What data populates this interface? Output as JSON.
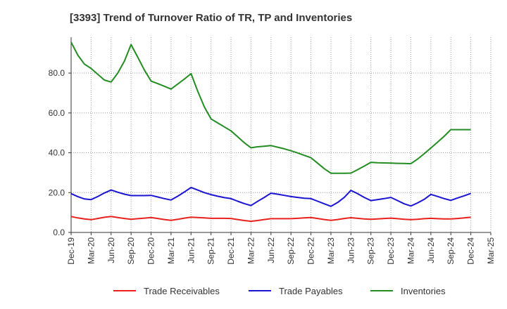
{
  "chart_data": {
    "type": "line",
    "title": "[3393]  Trend of Turnover Ratio of TR, TP and Inventories",
    "xlabel": "",
    "ylabel": "",
    "ylim": [
      0,
      98
    ],
    "yticks": [
      "0.0",
      "20.0",
      "40.0",
      "60.0",
      "80.0"
    ],
    "ytick_values": [
      0,
      20,
      40,
      60,
      80
    ],
    "xtick_labels": [
      "Dec-19",
      "Mar-20",
      "Jun-20",
      "Sep-20",
      "Dec-20",
      "Mar-21",
      "Jun-21",
      "Sep-21",
      "Dec-21",
      "Mar-22",
      "Jun-22",
      "Sep-22",
      "Dec-22",
      "Mar-23",
      "Jun-23",
      "Sep-23",
      "Dec-23",
      "Mar-24",
      "Jun-24",
      "Sep-24",
      "Dec-24",
      "Mar-25"
    ],
    "x": [
      "Dec-19",
      "Jan-20",
      "Feb-20",
      "Mar-20",
      "Apr-20",
      "May-20",
      "Jun-20",
      "Jul-20",
      "Aug-20",
      "Sep-20",
      "Oct-20",
      "Nov-20",
      "Dec-20",
      "Jan-21",
      "Feb-21",
      "Mar-21",
      "Apr-21",
      "May-21",
      "Jun-21",
      "Jul-21",
      "Aug-21",
      "Sep-21",
      "Oct-21",
      "Nov-21",
      "Dec-21",
      "Jan-22",
      "Feb-22",
      "Mar-22",
      "Apr-22",
      "May-22",
      "Jun-22",
      "Jul-22",
      "Aug-22",
      "Sep-22",
      "Oct-22",
      "Nov-22",
      "Dec-22",
      "Jan-23",
      "Feb-23",
      "Mar-23",
      "Apr-23",
      "May-23",
      "Jun-23",
      "Jul-23",
      "Aug-23",
      "Sep-23",
      "Oct-23",
      "Nov-23",
      "Dec-23",
      "Jan-24",
      "Feb-24",
      "Mar-24",
      "Apr-24",
      "May-24",
      "Jun-24",
      "Jul-24",
      "Aug-24",
      "Sep-24",
      "Oct-24",
      "Nov-24",
      "Dec-24"
    ],
    "series": [
      {
        "name": "Trade Receivables",
        "color": "#e8211d",
        "values": [
          8.0,
          7.3,
          6.8,
          6.4,
          7.0,
          7.6,
          8.0,
          7.5,
          7.0,
          6.6,
          6.9,
          7.2,
          7.5,
          7.0,
          6.5,
          6.1,
          6.6,
          7.2,
          7.7,
          7.5,
          7.3,
          7.1,
          7.1,
          7.1,
          7.0,
          6.5,
          6.0,
          5.6,
          6.0,
          6.5,
          6.9,
          6.9,
          6.9,
          6.9,
          7.1,
          7.3,
          7.5,
          7.0,
          6.5,
          6.1,
          6.5,
          7.0,
          7.4,
          7.1,
          6.8,
          6.6,
          6.8,
          7.0,
          7.2,
          6.9,
          6.6,
          6.4,
          6.6,
          6.9,
          7.1,
          6.9,
          6.8,
          6.8,
          7.0,
          7.3,
          7.6
        ]
      },
      {
        "name": "Trade Payables",
        "color": "#1a14d0",
        "values": [
          19.5,
          18.0,
          16.8,
          16.5,
          18.0,
          19.8,
          21.3,
          20.2,
          19.2,
          18.5,
          18.5,
          18.5,
          18.6,
          17.8,
          17.0,
          16.3,
          18.2,
          20.3,
          22.6,
          21.3,
          20.0,
          19.0,
          18.2,
          17.5,
          17.0,
          15.7,
          14.5,
          13.5,
          15.6,
          17.6,
          19.7,
          19.2,
          18.6,
          18.0,
          17.6,
          17.2,
          17.0,
          15.7,
          14.4,
          13.1,
          15.0,
          17.6,
          21.1,
          19.5,
          17.6,
          16.0,
          16.5,
          17.0,
          17.6,
          16.0,
          14.4,
          13.3,
          14.8,
          16.6,
          19.1,
          18.1,
          17.0,
          16.1,
          17.3,
          18.4,
          19.6
        ]
      },
      {
        "name": "Inventories",
        "color": "#238c23",
        "values": [
          95.5,
          89.0,
          84.5,
          82.3,
          79.4,
          76.5,
          75.5,
          80.0,
          86.0,
          94.3,
          88.0,
          81.5,
          76.0,
          74.7,
          73.4,
          72.0,
          74.5,
          77.0,
          79.7,
          71.0,
          63.0,
          57.0,
          55.0,
          53.0,
          51.0,
          48.0,
          45.0,
          42.5,
          43.0,
          43.3,
          43.6,
          42.8,
          42.0,
          41.0,
          39.9,
          38.7,
          37.5,
          34.8,
          32.0,
          29.7,
          29.7,
          29.7,
          29.8,
          31.5,
          33.3,
          35.2,
          35.0,
          34.9,
          34.8,
          34.7,
          34.6,
          34.5,
          36.8,
          39.5,
          42.4,
          45.3,
          48.3,
          51.6,
          51.6,
          51.6,
          51.6
        ]
      }
    ],
    "legend_placement": "bottom",
    "grid": true,
    "grid_style": "dotted"
  }
}
